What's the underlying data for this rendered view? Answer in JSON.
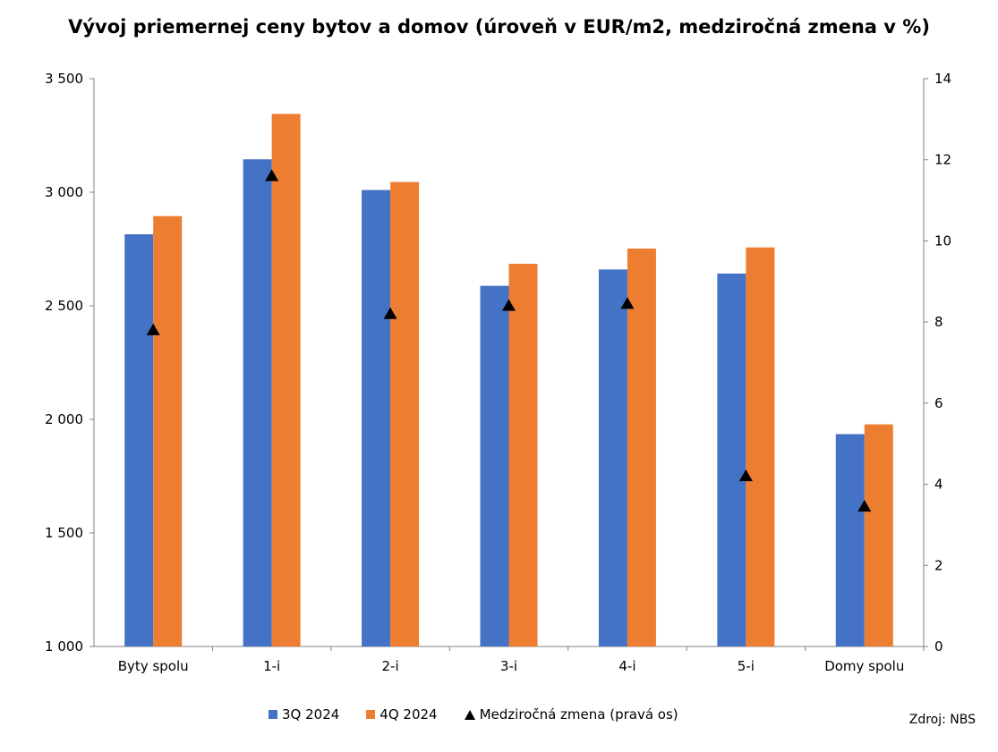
{
  "chart_data": {
    "type": "bar",
    "title": "Vývoj priemernej ceny bytov a domov (úroveň v EUR/m2, medziročná zmena v %)",
    "categories": [
      "Byty spolu",
      "1-i",
      "2-i",
      "3-i",
      "4-i",
      "5-i",
      "Domy spolu"
    ],
    "series": [
      {
        "name": "3Q 2024",
        "axis": "left",
        "color": "#4472C4",
        "values": [
          2815,
          3145,
          3010,
          2588,
          2660,
          2642,
          1935
        ]
      },
      {
        "name": "4Q 2024",
        "axis": "left",
        "color": "#ED7D31",
        "values": [
          2895,
          3345,
          3045,
          2685,
          2752,
          2757,
          1978
        ]
      },
      {
        "name": "Medziročná zmena (pravá os)",
        "axis": "right",
        "type": "scatter",
        "marker": "triangle",
        "color": "#000000",
        "values": [
          7.8,
          11.6,
          8.2,
          8.4,
          8.45,
          4.2,
          3.45
        ]
      }
    ],
    "ylim_left": [
      1000,
      3500
    ],
    "yticks_left": [
      "1 000",
      "1 500",
      "2 000",
      "2 500",
      "3 000",
      "3 500"
    ],
    "ylim_right": [
      0,
      14
    ],
    "yticks_right": [
      "0",
      "2",
      "4",
      "6",
      "8",
      "10",
      "12",
      "14"
    ],
    "legend_position": "bottom",
    "grid": false
  },
  "legend": {
    "s1": "3Q 2024",
    "s2": "4Q 2024",
    "s3": "Medziročná zmena (pravá os)"
  },
  "source": "Zdroj: NBS"
}
